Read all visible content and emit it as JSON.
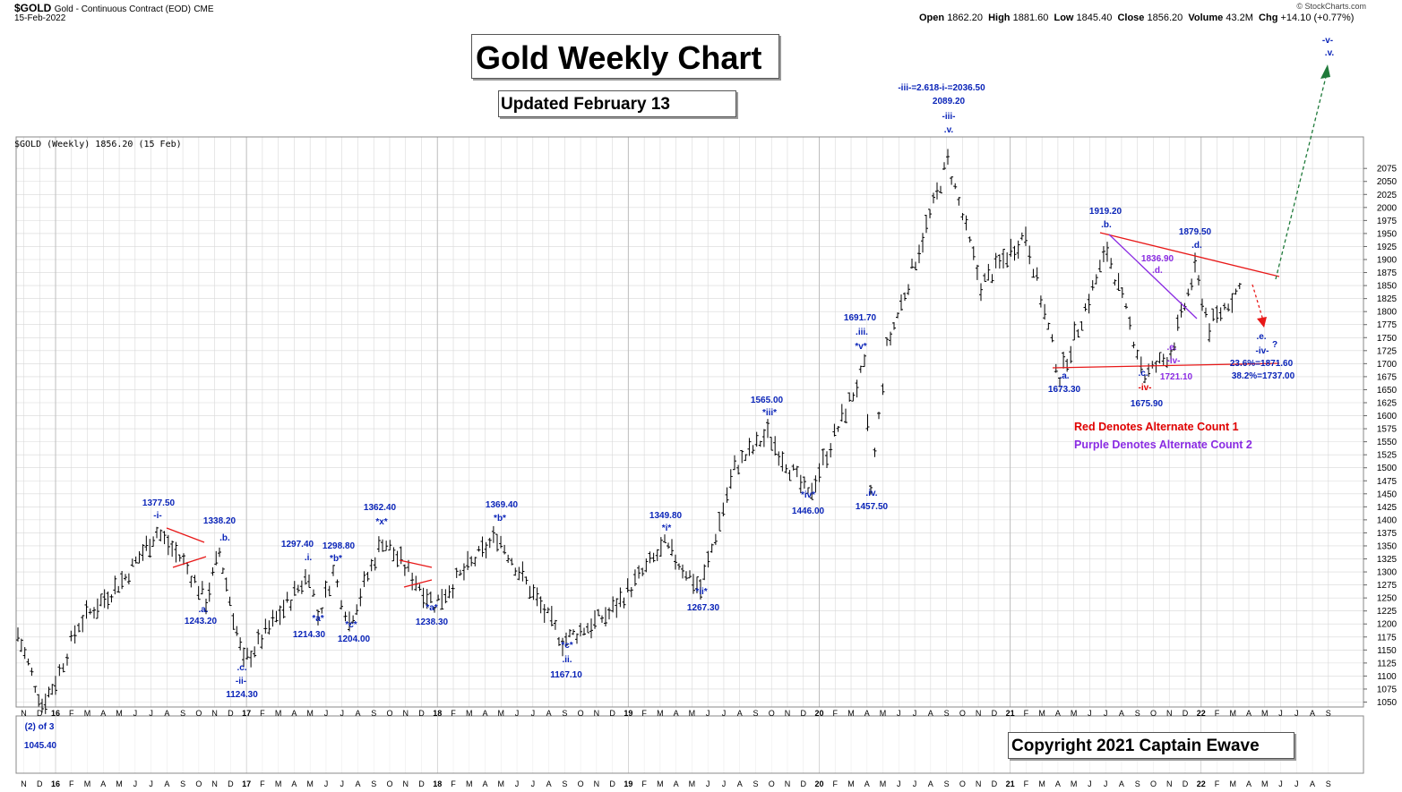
{
  "header": {
    "symbol": "$GOLD",
    "description": "Gold - Continuous Contract (EOD)",
    "exchange": "CME",
    "date": "15-Feb-2022",
    "ohlc": {
      "open_label": "Open",
      "open": "1862.20",
      "high_label": "High",
      "high": "1881.60",
      "low_label": "Low",
      "low": "1845.40",
      "close_label": "Close",
      "close": "1856.20",
      "volume_label": "Volume",
      "volume": "43.2M",
      "chg_label": "Chg",
      "chg": "+14.10 (+0.77%)"
    },
    "brand": "© StockCharts.com"
  },
  "boxes": {
    "title": "Gold Weekly Chart",
    "updated": "Updated February 13",
    "copyright": "Copyright 2021 Captain Ewave"
  },
  "series_label": "$GOLD (Weekly) 1856.20 (15 Feb)",
  "chart_data": {
    "type": "bar",
    "title": "Gold Weekly Chart",
    "series": [
      {
        "name": "$GOLD (Weekly)",
        "points": [
          {
            "x": "2015-11",
            "y": 1180
          },
          {
            "x": "2015-12",
            "y": 1045.4
          },
          {
            "x": "2016-01",
            "y": 1090
          },
          {
            "x": "2016-02",
            "y": 1200
          },
          {
            "x": "2016-03",
            "y": 1230
          },
          {
            "x": "2016-05",
            "y": 1290
          },
          {
            "x": "2016-07",
            "y": 1377.5
          },
          {
            "x": "2016-09",
            "y": 1320
          },
          {
            "x": "2016-10",
            "y": 1243.2
          },
          {
            "x": "2016-10b",
            "y": 1338.2
          },
          {
            "x": "2016-12",
            "y": 1124.3
          },
          {
            "x": "2017-04",
            "y": 1297.4
          },
          {
            "x": "2017-05",
            "y": 1214.3
          },
          {
            "x": "2017-06",
            "y": 1298.8
          },
          {
            "x": "2017-07",
            "y": 1204.0
          },
          {
            "x": "2017-09",
            "y": 1362.4
          },
          {
            "x": "2017-12",
            "y": 1238.3
          },
          {
            "x": "2018-04",
            "y": 1369.4
          },
          {
            "x": "2018-08",
            "y": 1167.1
          },
          {
            "x": "2018-11",
            "y": 1220
          },
          {
            "x": "2019-02",
            "y": 1349.8
          },
          {
            "x": "2019-05",
            "y": 1267.3
          },
          {
            "x": "2019-08",
            "y": 1500
          },
          {
            "x": "2019-09",
            "y": 1565.0
          },
          {
            "x": "2019-11",
            "y": 1446.0
          },
          {
            "x": "2020-03",
            "y": 1691.7
          },
          {
            "x": "2020-03b",
            "y": 1457.5
          },
          {
            "x": "2020-05",
            "y": 1730
          },
          {
            "x": "2020-08",
            "y": 2089.2
          },
          {
            "x": "2020-11",
            "y": 1850
          },
          {
            "x": "2021-01",
            "y": 1950
          },
          {
            "x": "2021-03",
            "y": 1673.3
          },
          {
            "x": "2021-06",
            "y": 1919.2
          },
          {
            "x": "2021-08",
            "y": 1675.9
          },
          {
            "x": "2021-09",
            "y": 1721.1
          },
          {
            "x": "2021-11",
            "y": 1879.5
          },
          {
            "x": "2021-12",
            "y": 1770
          },
          {
            "x": "2022-02",
            "y": 1856.2
          }
        ]
      }
    ],
    "ylim": [
      1035,
      2090
    ],
    "y_ticks": [
      "1050",
      "1075",
      "1100",
      "1125",
      "1150",
      "1175",
      "1200",
      "1225",
      "1250",
      "1275",
      "1300",
      "1325",
      "1350",
      "1375",
      "1400",
      "1425",
      "1450",
      "1475",
      "1500",
      "1525",
      "1550",
      "1575",
      "1600",
      "1625",
      "1650",
      "1675",
      "1700",
      "1725",
      "1750",
      "1775",
      "1800",
      "1825",
      "1850",
      "1875",
      "1900",
      "1925",
      "1950",
      "1975",
      "2000",
      "2025",
      "2050",
      "2075"
    ],
    "x_ticks": [
      "N",
      "D",
      "16",
      "F",
      "M",
      "A",
      "M",
      "J",
      "J",
      "A",
      "S",
      "O",
      "N",
      "D",
      "17",
      "F",
      "M",
      "A",
      "M",
      "J",
      "J",
      "A",
      "S",
      "O",
      "N",
      "D",
      "18",
      "F",
      "M",
      "A",
      "M",
      "J",
      "J",
      "A",
      "S",
      "O",
      "N",
      "D",
      "19",
      "F",
      "M",
      "A",
      "M",
      "J",
      "J",
      "A",
      "S",
      "O",
      "N",
      "D",
      "20",
      "F",
      "M",
      "A",
      "M",
      "J",
      "J",
      "A",
      "S",
      "O",
      "N",
      "D",
      "21",
      "F",
      "M",
      "A",
      "M",
      "J",
      "J",
      "A",
      "S",
      "O",
      "N",
      "D",
      "22",
      "F",
      "M",
      "A",
      "M",
      "J",
      "J",
      "A",
      "S"
    ],
    "annotations": [
      {
        "text": "-iii-=2.618-i-=2036.50",
        "color": "#0a24b8"
      },
      {
        "text": "2089.20",
        "color": "#0a24b8"
      },
      {
        "text": "-iii-",
        "color": "#0a24b8"
      },
      {
        "text": ".v.",
        "color": "#0a24b8"
      },
      {
        "text": "1377.50",
        "color": "#0a24b8"
      },
      {
        "text": "-i-",
        "color": "#0a24b8"
      },
      {
        "text": "1338.20",
        "color": "#0a24b8"
      },
      {
        "text": ".b.",
        "color": "#0a24b8"
      },
      {
        "text": ".a.",
        "color": "#0a24b8"
      },
      {
        "text": "1243.20",
        "color": "#0a24b8"
      },
      {
        "text": ".c.",
        "color": "#0a24b8"
      },
      {
        "text": "-ii-",
        "color": "#0a24b8"
      },
      {
        "text": "1124.30",
        "color": "#0a24b8"
      },
      {
        "text": "1297.40",
        "color": "#0a24b8"
      },
      {
        "text": ".i.",
        "color": "#0a24b8"
      },
      {
        "text": "1298.80",
        "color": "#0a24b8"
      },
      {
        "text": "*b*",
        "color": "#0a24b8"
      },
      {
        "text": "*a*",
        "color": "#0a24b8"
      },
      {
        "text": "1214.30",
        "color": "#0a24b8"
      },
      {
        "text": "*c*",
        "color": "#0a24b8"
      },
      {
        "text": "1204.00",
        "color": "#0a24b8"
      },
      {
        "text": "1362.40",
        "color": "#0a24b8"
      },
      {
        "text": "*x*",
        "color": "#0a24b8"
      },
      {
        "text": "*a*",
        "color": "#0a24b8"
      },
      {
        "text": "1238.30",
        "color": "#0a24b8"
      },
      {
        "text": "1369.40",
        "color": "#0a24b8"
      },
      {
        "text": "*b*",
        "color": "#0a24b8"
      },
      {
        "text": "*c*",
        "color": "#0a24b8"
      },
      {
        "text": ".ii.",
        "color": "#0a24b8"
      },
      {
        "text": "1167.10",
        "color": "#0a24b8"
      },
      {
        "text": "1349.80",
        "color": "#0a24b8"
      },
      {
        "text": "*i*",
        "color": "#0a24b8"
      },
      {
        "text": "*ii*",
        "color": "#0a24b8"
      },
      {
        "text": "1267.30",
        "color": "#0a24b8"
      },
      {
        "text": "1565.00",
        "color": "#0a24b8"
      },
      {
        "text": "*iii*",
        "color": "#0a24b8"
      },
      {
        "text": "*iv*",
        "color": "#0a24b8"
      },
      {
        "text": "1446.00",
        "color": "#0a24b8"
      },
      {
        "text": "1691.70",
        "color": "#0a24b8"
      },
      {
        "text": ".iii.",
        "color": "#0a24b8"
      },
      {
        "text": "*v*",
        "color": "#0a24b8"
      },
      {
        "text": ".iv.",
        "color": "#0a24b8"
      },
      {
        "text": "1457.50",
        "color": "#0a24b8"
      },
      {
        "text": "1919.20",
        "color": "#0a24b8"
      },
      {
        "text": ".b.",
        "color": "#0a24b8"
      },
      {
        "text": "1836.90",
        "color": "#8a2be2"
      },
      {
        "text": ".d.",
        "color": "#8a2be2"
      },
      {
        "text": "1879.50",
        "color": "#0a24b8"
      },
      {
        "text": ".d.",
        "color": "#0a24b8"
      },
      {
        "text": ".a.",
        "color": "#0a24b8"
      },
      {
        "text": "1673.30",
        "color": "#0a24b8"
      },
      {
        "text": ".c.",
        "color": "#0a24b8"
      },
      {
        "text": "-iv-",
        "color": "#e00000"
      },
      {
        "text": "1675.90",
        "color": "#0a24b8"
      },
      {
        "text": ".e.",
        "color": "#8a2be2"
      },
      {
        "text": "-iv-",
        "color": "#8a2be2"
      },
      {
        "text": "1721.10",
        "color": "#8a2be2"
      },
      {
        "text": ".e.",
        "color": "#0a24b8"
      },
      {
        "text": "-iv-",
        "color": "#0a24b8"
      },
      {
        "text": "?",
        "color": "#0a24b8"
      },
      {
        "text": "23.6%=1871.60",
        "color": "#0a24b8"
      },
      {
        "text": "38.2%=1737.00",
        "color": "#0a24b8"
      },
      {
        "text": "-v-",
        "color": "#0a24b8"
      },
      {
        "text": ".v.",
        "color": "#0a24b8"
      },
      {
        "text": "(2) of 3",
        "color": "#0a24b8"
      },
      {
        "text": "1045.40",
        "color": "#0a24b8"
      }
    ],
    "legend_notes": [
      {
        "text": "Red Denotes Alternate Count 1",
        "color": "#e00000"
      },
      {
        "text": "Purple Denotes Alternate Count 2",
        "color": "#8a2be2"
      }
    ],
    "colors": {
      "bars": "#000000",
      "trendline": "#e81818",
      "purple": "#8a2be2",
      "projection": "#1f7a3a",
      "grid": "#d8d8d8"
    }
  }
}
